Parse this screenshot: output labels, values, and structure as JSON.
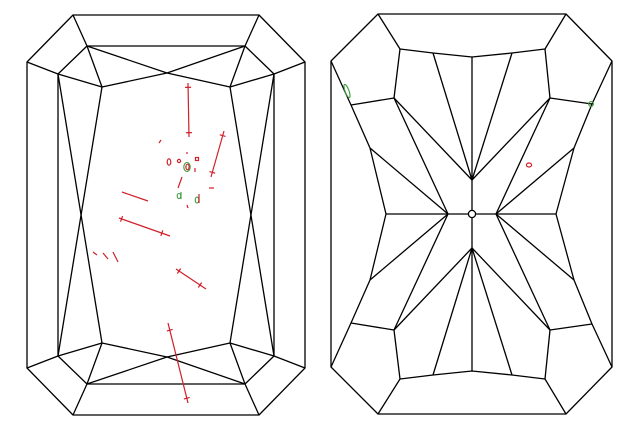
{
  "diagrams": [
    {
      "view": "crown",
      "inclusion_count": 18
    },
    {
      "view": "pavilion",
      "inclusion_count": 3
    }
  ],
  "colors": {
    "facet_outline": "#000000",
    "inclusion_red": "#d0202a",
    "inclusion_green": "#3c9a3c",
    "background": "#ffffff"
  }
}
